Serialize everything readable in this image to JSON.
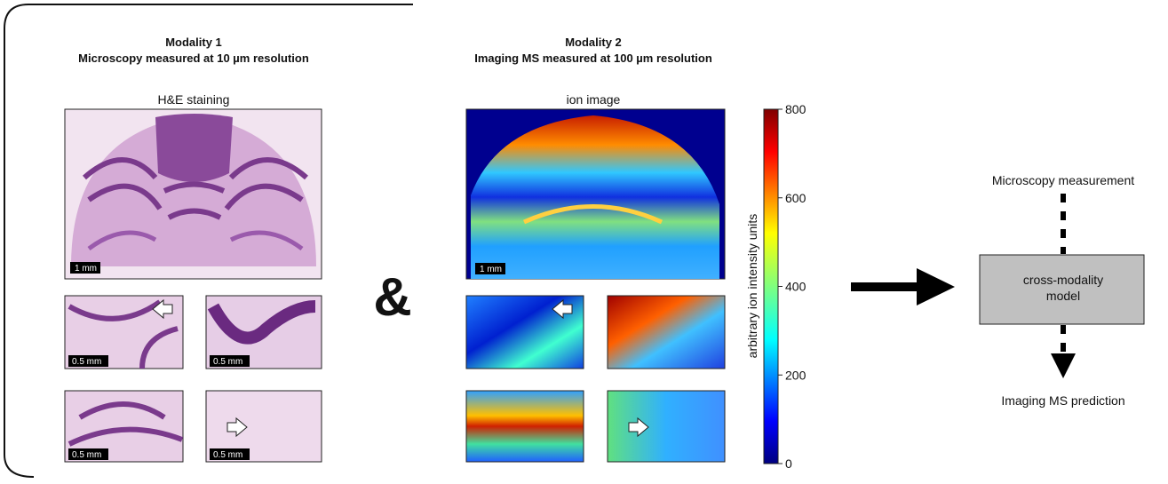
{
  "modality1": {
    "title": [
      "Modality 1",
      "Microscopy measured at 10 µm resolution"
    ],
    "image_label": "H&E staining",
    "main_scale": "1 mm",
    "detail_scales": [
      "0.5 mm",
      "0.5 mm",
      "0.5 mm",
      "0.5 mm"
    ]
  },
  "connector": "&",
  "modality2": {
    "title": [
      "Modality 2",
      "Imaging MS measured at 100 µm resolution"
    ],
    "image_label": "ion image",
    "main_scale": "1 mm"
  },
  "colorbar": {
    "label": "arbitrary ion intensity units",
    "range": [
      0,
      800
    ],
    "ticks": [
      0,
      200,
      400,
      600,
      800
    ]
  },
  "workflow": {
    "input": "Microscopy measurement",
    "model": [
      "cross-modality",
      "model"
    ],
    "output": "Imaging MS prediction"
  }
}
